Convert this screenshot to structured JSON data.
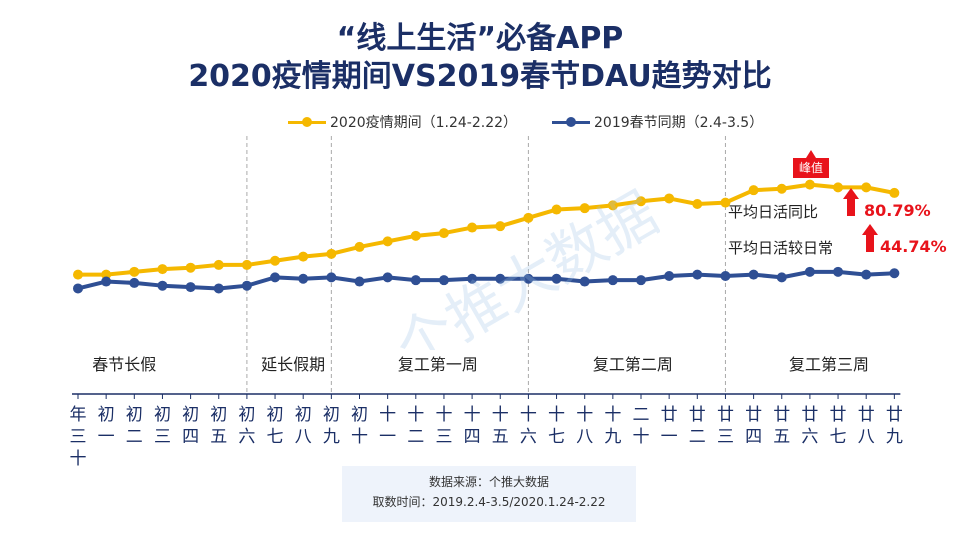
{
  "title_line1": "“线上生活”必备APP",
  "title_line2": "2020疫情期间VS2019春节DAU趋势对比",
  "chart_data": {
    "type": "line",
    "categories": [
      "年三十",
      "初一",
      "初二",
      "初三",
      "初四",
      "初五",
      "初六",
      "初七",
      "初八",
      "初九",
      "初十",
      "十一",
      "十二",
      "十三",
      "十四",
      "十五",
      "十六",
      "十七",
      "十八",
      "十九",
      "二十",
      "廿一",
      "廿二",
      "廿三",
      "廿四",
      "廿五",
      "廿六",
      "廿七",
      "廿八",
      "廿九"
    ],
    "series": [
      {
        "name": "2020疫情期间（1.24-2.22）",
        "color": "#f5b800",
        "values": [
          100,
          100,
          102,
          104,
          105,
          107,
          107,
          110,
          113,
          115,
          120,
          124,
          128,
          130,
          134,
          135,
          141,
          147,
          148,
          150,
          153,
          155,
          151,
          152,
          161,
          162,
          165,
          163,
          163,
          159
        ]
      },
      {
        "name": "2019春节同期（2.4-3.5）",
        "color": "#2f4f94",
        "values": [
          90,
          95,
          94,
          92,
          91,
          90,
          92,
          98,
          97,
          98,
          95,
          98,
          96,
          96,
          97,
          97,
          97,
          97,
          95,
          96,
          96,
          99,
          100,
          99,
          100,
          98,
          102,
          102,
          100,
          101
        ]
      }
    ],
    "ylim": [
      60,
      190
    ],
    "xlabel": "",
    "ylabel": "",
    "grid": false,
    "legend": "top"
  },
  "periods": [
    {
      "label": "春节长假"
    },
    {
      "label": "延长假期"
    },
    {
      "label": "复工第一周"
    },
    {
      "label": "复工第二周"
    },
    {
      "label": "复工第三周"
    }
  ],
  "peak_label": "峰值",
  "annotations": [
    {
      "label": "平均日活同比",
      "value": "80.79%"
    },
    {
      "label": "平均日活较日常",
      "value": "44.74%"
    }
  ],
  "source_line1": "数据来源：个推大数据",
  "source_line2": "取数时间：2019.2.4-3.5/2020.1.24-2.22",
  "watermark": "个推大数据"
}
